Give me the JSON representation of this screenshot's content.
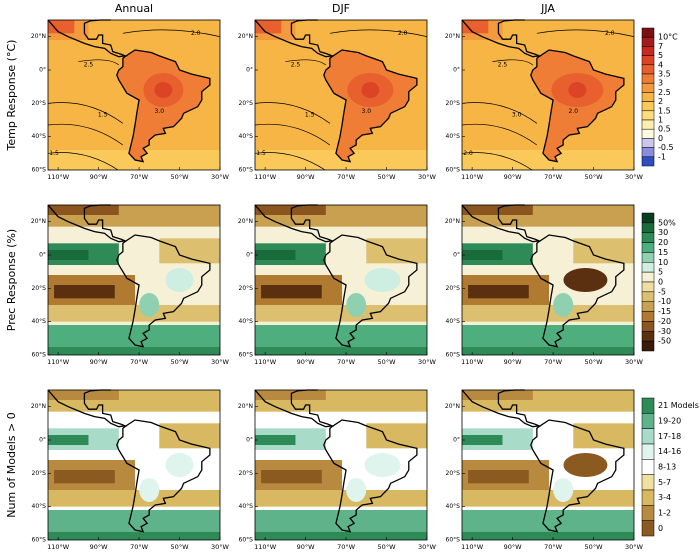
{
  "columns": [
    "Annual",
    "DJF",
    "JJA"
  ],
  "lat_ticks": [
    "20°N",
    "0°",
    "20°S",
    "40°S",
    "60°S"
  ],
  "lon_ticks": [
    "110°W",
    "90°W",
    "70°W",
    "50°W",
    "30°W"
  ],
  "rows": [
    {
      "label": "Temp Response (°C)",
      "contour_labels": [
        [
          "2.0",
          "2.5",
          "1.5",
          "3.0",
          "1.5"
        ],
        [
          "2.0",
          "2.5",
          "1.5",
          "3.0",
          "1.5"
        ],
        [
          "2.0",
          "2.5",
          "3.0",
          "2.0",
          "2.0"
        ]
      ],
      "colorbar": {
        "labels": [
          "10°C",
          "7",
          "5",
          "4",
          "3.5",
          "3",
          "2.5",
          "2",
          "1.5",
          "1",
          "0.5",
          "0",
          "-0.5",
          "-1"
        ],
        "colors": [
          "#7a1010",
          "#a51c1c",
          "#c8281e",
          "#dc4426",
          "#e8602e",
          "#ef7d36",
          "#f39a3e",
          "#f7b546",
          "#fac95a",
          "#fcdc7e",
          "#feeeb0",
          "#fffbe0",
          "#c9c7ee",
          "#8d8ddd",
          "#2e4fbf"
        ]
      }
    },
    {
      "label": "Prec Response (%)",
      "colorbar": {
        "labels": [
          "50%",
          "30",
          "20",
          "15",
          "10",
          "5",
          "0",
          "-5",
          "-10",
          "-15",
          "-20",
          "-30",
          "-50"
        ],
        "colors": [
          "#0b3d20",
          "#1a6b3a",
          "#2e8b57",
          "#4fae7e",
          "#8fd0b0",
          "#cdeee0",
          "#f6f1d6",
          "#efdea0",
          "#dcc070",
          "#c8a050",
          "#b07a30",
          "#8b5520",
          "#5a3010",
          "#3a1a08"
        ]
      }
    },
    {
      "label": "Num of Models > 0",
      "colorbar": {
        "labels": [
          "21 Models",
          "19-20",
          "17-18",
          "14-16",
          "8-13",
          "5-7",
          "3-4",
          "1-2",
          "0"
        ],
        "colors": [
          "#2e8b57",
          "#5fb38a",
          "#a8dcc8",
          "#e0f4ee",
          "#ffffff",
          "#f0e0a0",
          "#d8b860",
          "#b88a40",
          "#8b5a20"
        ]
      }
    }
  ]
}
